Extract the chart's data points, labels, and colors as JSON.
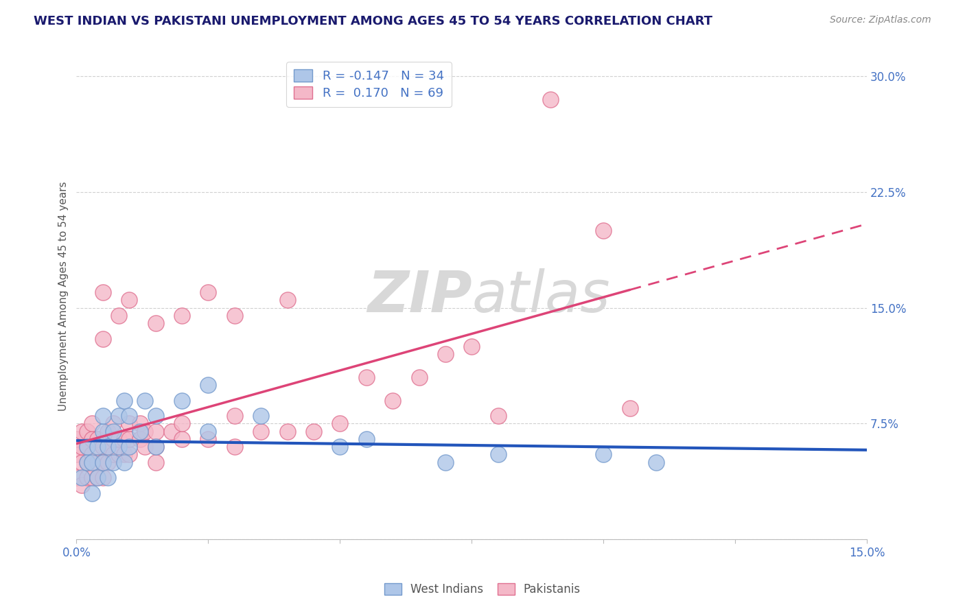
{
  "title": "WEST INDIAN VS PAKISTANI UNEMPLOYMENT AMONG AGES 45 TO 54 YEARS CORRELATION CHART",
  "source": "Source: ZipAtlas.com",
  "ylabel": "Unemployment Among Ages 45 to 54 years",
  "xlim": [
    0.0,
    0.15
  ],
  "ylim": [
    0.0,
    0.315
  ],
  "xticks": [
    0.0,
    0.025,
    0.05,
    0.075,
    0.1,
    0.125,
    0.15
  ],
  "xticklabels": [
    "0.0%",
    "",
    "",
    "",
    "",
    "",
    "15.0%"
  ],
  "yticks": [
    0.0,
    0.075,
    0.15,
    0.225,
    0.3
  ],
  "yticklabels": [
    "",
    "7.5%",
    "15.0%",
    "22.5%",
    "30.0%"
  ],
  "blue_R": -0.147,
  "blue_N": 34,
  "pink_R": 0.17,
  "pink_N": 69,
  "title_color": "#1a1a6e",
  "axis_label_color": "#555555",
  "tick_color": "#4472c4",
  "grid_color": "#d0d0d0",
  "blue_dot_color": "#aec6e8",
  "blue_dot_edge": "#7399cc",
  "pink_dot_color": "#f4b8c8",
  "pink_dot_edge": "#e07090",
  "blue_line_color": "#2255bb",
  "pink_line_color": "#dd4477",
  "background_color": "#ffffff",
  "watermark_color": "#d8d8d8",
  "west_indian_x": [
    0.001,
    0.002,
    0.002,
    0.003,
    0.003,
    0.004,
    0.004,
    0.005,
    0.005,
    0.005,
    0.006,
    0.006,
    0.007,
    0.007,
    0.008,
    0.008,
    0.009,
    0.009,
    0.01,
    0.01,
    0.012,
    0.013,
    0.015,
    0.015,
    0.02,
    0.025,
    0.025,
    0.035,
    0.05,
    0.055,
    0.07,
    0.08,
    0.1,
    0.11
  ],
  "west_indian_y": [
    0.04,
    0.05,
    0.06,
    0.03,
    0.05,
    0.04,
    0.06,
    0.05,
    0.07,
    0.08,
    0.04,
    0.06,
    0.05,
    0.07,
    0.06,
    0.08,
    0.05,
    0.09,
    0.06,
    0.08,
    0.07,
    0.09,
    0.06,
    0.08,
    0.09,
    0.07,
    0.1,
    0.08,
    0.06,
    0.065,
    0.05,
    0.055,
    0.055,
    0.05
  ],
  "pakistani_x": [
    0.0,
    0.0,
    0.0,
    0.001,
    0.001,
    0.001,
    0.001,
    0.002,
    0.002,
    0.002,
    0.002,
    0.003,
    0.003,
    0.003,
    0.003,
    0.004,
    0.004,
    0.004,
    0.005,
    0.005,
    0.005,
    0.005,
    0.005,
    0.006,
    0.006,
    0.006,
    0.007,
    0.007,
    0.007,
    0.008,
    0.008,
    0.008,
    0.009,
    0.009,
    0.01,
    0.01,
    0.01,
    0.01,
    0.012,
    0.012,
    0.013,
    0.013,
    0.015,
    0.015,
    0.015,
    0.015,
    0.018,
    0.02,
    0.02,
    0.02,
    0.025,
    0.025,
    0.03,
    0.03,
    0.03,
    0.035,
    0.04,
    0.04,
    0.045,
    0.05,
    0.055,
    0.06,
    0.065,
    0.07,
    0.075,
    0.08,
    0.09,
    0.1,
    0.105
  ],
  "pakistani_y": [
    0.04,
    0.055,
    0.065,
    0.035,
    0.05,
    0.06,
    0.07,
    0.04,
    0.05,
    0.06,
    0.07,
    0.04,
    0.055,
    0.065,
    0.075,
    0.04,
    0.05,
    0.065,
    0.04,
    0.05,
    0.06,
    0.13,
    0.16,
    0.05,
    0.06,
    0.07,
    0.055,
    0.065,
    0.075,
    0.055,
    0.065,
    0.145,
    0.055,
    0.065,
    0.055,
    0.065,
    0.075,
    0.155,
    0.065,
    0.075,
    0.06,
    0.07,
    0.05,
    0.06,
    0.07,
    0.14,
    0.07,
    0.065,
    0.075,
    0.145,
    0.065,
    0.16,
    0.06,
    0.08,
    0.145,
    0.07,
    0.07,
    0.155,
    0.07,
    0.075,
    0.105,
    0.09,
    0.105,
    0.12,
    0.125,
    0.08,
    0.285,
    0.2,
    0.085
  ],
  "figsize": [
    14.06,
    8.92
  ],
  "dpi": 100
}
